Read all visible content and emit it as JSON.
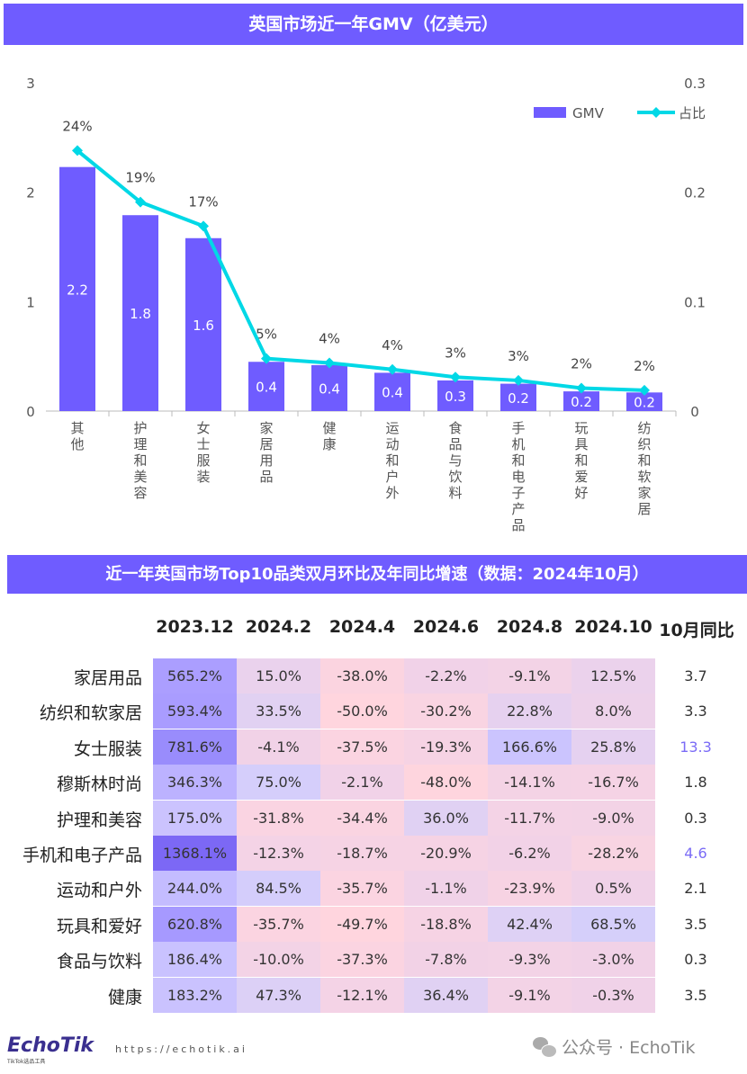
{
  "chart_title": "英国市场近一年GMV（亿美元）",
  "chart_data": {
    "type": "bar+line",
    "categories": [
      "其他",
      "护理和美容",
      "女士服装",
      "家居用品",
      "健康",
      "运动和户外",
      "食品与饮料",
      "手机和电子产品",
      "玩具和爱好",
      "纺织和软家居"
    ],
    "series": [
      {
        "name": "GMV",
        "type": "bar",
        "axis": "left",
        "values": [
          2.2,
          1.8,
          1.6,
          0.4,
          0.4,
          0.4,
          0.3,
          0.2,
          0.2,
          0.2
        ],
        "bar_heights": [
          2.23,
          1.79,
          1.58,
          0.45,
          0.42,
          0.35,
          0.28,
          0.25,
          0.18,
          0.17
        ],
        "color": "#6f5cff"
      },
      {
        "name": "占比",
        "type": "line",
        "axis": "right",
        "values": [
          0.24,
          0.19,
          0.17,
          0.05,
          0.04,
          0.04,
          0.03,
          0.03,
          0.02,
          0.02
        ],
        "labels": [
          "24%",
          "19%",
          "17%",
          "5%",
          "4%",
          "4%",
          "3%",
          "3%",
          "2%",
          "2%"
        ],
        "line_values": [
          0.238,
          0.191,
          0.169,
          0.048,
          0.044,
          0.038,
          0.031,
          0.028,
          0.021,
          0.019
        ],
        "color": "#00d8e6"
      }
    ],
    "y_left": {
      "range": [
        0,
        3
      ],
      "ticks": [
        "0",
        "1",
        "2",
        "3"
      ]
    },
    "y_right": {
      "range": [
        0,
        0.3
      ],
      "ticks": [
        "0",
        "0.1",
        "0.2",
        "0.3"
      ]
    },
    "legend": "top-right",
    "grid": false
  },
  "table": {
    "title": "近一年英国市场Top10品类双月环比及年同比增速（数据：2024年10月）",
    "columns": [
      "2023.12",
      "2024.2",
      "2024.4",
      "2024.6",
      "2024.8",
      "2024.10",
      "10月同比"
    ],
    "rows": [
      {
        "label": "家居用品",
        "values": [
          "565.2%",
          "15.0%",
          "-38.0%",
          "-2.2%",
          "-9.1%",
          "12.5%"
        ],
        "yoy": "3.7"
      },
      {
        "label": "纺织和软家居",
        "values": [
          "593.4%",
          "33.5%",
          "-50.0%",
          "-30.2%",
          "22.8%",
          "8.0%"
        ],
        "yoy": "3.3"
      },
      {
        "label": "女士服装",
        "values": [
          "781.6%",
          "-4.1%",
          "-37.5%",
          "-19.3%",
          "166.6%",
          "25.8%"
        ],
        "yoy": "13.3"
      },
      {
        "label": "穆斯林时尚",
        "values": [
          "346.3%",
          "75.0%",
          "-2.1%",
          "-48.0%",
          "-14.1%",
          "-16.7%"
        ],
        "yoy": "1.8"
      },
      {
        "label": "护理和美容",
        "values": [
          "175.0%",
          "-31.8%",
          "-34.4%",
          "36.0%",
          "-11.7%",
          "-9.0%"
        ],
        "yoy": "0.3"
      },
      {
        "label": "手机和电子产品",
        "values": [
          "1368.1%",
          "-12.3%",
          "-18.7%",
          "-20.9%",
          "-6.2%",
          "-28.2%"
        ],
        "yoy": "4.6"
      },
      {
        "label": "运动和户外",
        "values": [
          "244.0%",
          "84.5%",
          "-35.7%",
          "-1.1%",
          "-23.9%",
          "0.5%"
        ],
        "yoy": "2.1"
      },
      {
        "label": "玩具和爱好",
        "values": [
          "620.8%",
          "-35.7%",
          "-49.7%",
          "-18.8%",
          "42.4%",
          "68.5%"
        ],
        "yoy": "3.5"
      },
      {
        "label": "食品与饮料",
        "values": [
          "186.4%",
          "-10.0%",
          "-37.3%",
          "-7.8%",
          "-9.3%",
          "-3.0%"
        ],
        "yoy": "0.3"
      },
      {
        "label": "健康",
        "values": [
          "183.2%",
          "47.3%",
          "-12.1%",
          "36.4%",
          "-9.1%",
          "-0.3%"
        ],
        "yoy": "3.5"
      }
    ]
  },
  "footer": {
    "logo": "EchoTik",
    "logo_sub": "TikTok选品工具",
    "url": "https://echotik.ai",
    "wechat": "公众号 · EchoTik"
  }
}
